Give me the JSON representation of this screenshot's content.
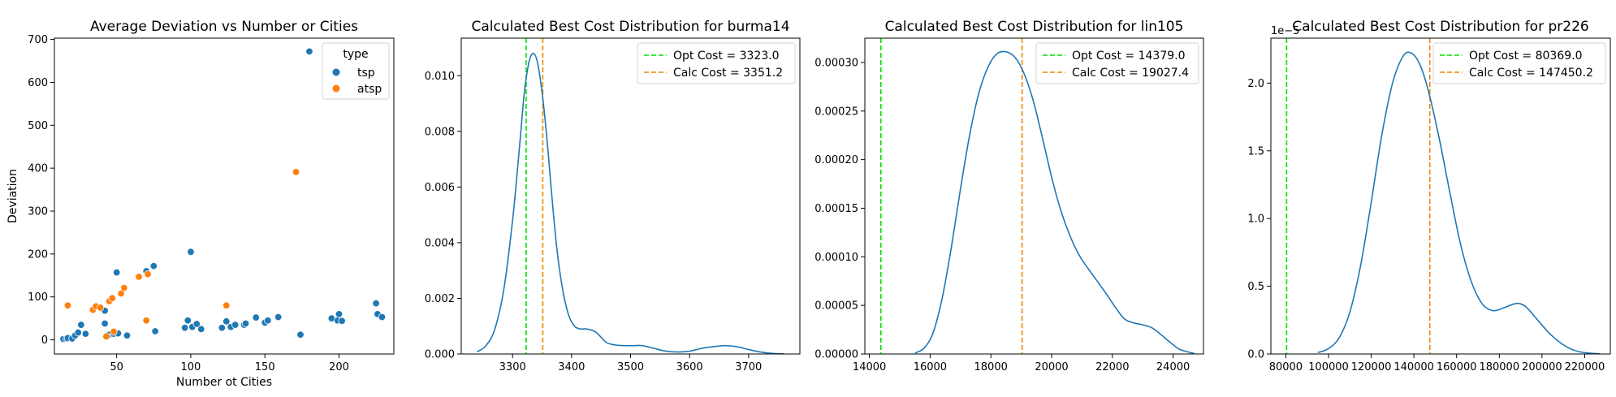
{
  "chart_data": [
    {
      "type": "scatter",
      "title": "Average Deviation vs Number or Cities",
      "xlabel": "Number ot Cities",
      "ylabel": "Deviation",
      "xlim": [
        8,
        237
      ],
      "ylim": [
        -33,
        703
      ],
      "xticks": [
        "50",
        "100",
        "150",
        "200"
      ],
      "xtick_values": [
        50,
        100,
        150,
        200
      ],
      "yticks": [
        "0",
        "100",
        "200",
        "300",
        "400",
        "500",
        "600",
        "700"
      ],
      "ytick_values": [
        0,
        100,
        200,
        300,
        400,
        500,
        600,
        700
      ],
      "legend": {
        "title": "type",
        "position": "top-right"
      },
      "series": [
        {
          "name": "tsp",
          "color": "#1f77b4",
          "points": [
            [
              14,
              2
            ],
            [
              16,
              3
            ],
            [
              17,
              4
            ],
            [
              20,
              3
            ],
            [
              22,
              10
            ],
            [
              24,
              17
            ],
            [
              26,
              35
            ],
            [
              29,
              14
            ],
            [
              42,
              68
            ],
            [
              42,
              38
            ],
            [
              45,
              12
            ],
            [
              48,
              14
            ],
            [
              50,
              157
            ],
            [
              51,
              15
            ],
            [
              57,
              10
            ],
            [
              70,
              160
            ],
            [
              75,
              172
            ],
            [
              76,
              20
            ],
            [
              96,
              28
            ],
            [
              98,
              45
            ],
            [
              100,
              205
            ],
            [
              101,
              30
            ],
            [
              104,
              37
            ],
            [
              107,
              25
            ],
            [
              121,
              28
            ],
            [
              124,
              43
            ],
            [
              127,
              30
            ],
            [
              130,
              35
            ],
            [
              136,
              35
            ],
            [
              137,
              38
            ],
            [
              144,
              52
            ],
            [
              150,
              40
            ],
            [
              152,
              45
            ],
            [
              159,
              53
            ],
            [
              174,
              12
            ],
            [
              180,
              672
            ],
            [
              195,
              50
            ],
            [
              199,
              45
            ],
            [
              200,
              60
            ],
            [
              202,
              44
            ],
            [
              225,
              85
            ],
            [
              226,
              60
            ],
            [
              229,
              53
            ]
          ]
        },
        {
          "name": "atsp",
          "color": "#ff7f0e",
          "points": [
            [
              17,
              80
            ],
            [
              34,
              70
            ],
            [
              36,
              78
            ],
            [
              39,
              75
            ],
            [
              43,
              8
            ],
            [
              45,
              90
            ],
            [
              47,
              97
            ],
            [
              48,
              19
            ],
            [
              53,
              108
            ],
            [
              55,
              121
            ],
            [
              65,
              147
            ],
            [
              70,
              45
            ],
            [
              71,
              153
            ],
            [
              124,
              80
            ],
            [
              171,
              391
            ]
          ]
        }
      ]
    },
    {
      "type": "line",
      "title": "Calculated Best Cost Distribution for burma14",
      "xlim": [
        3213,
        3787
      ],
      "ylim": [
        0,
        0.01135
      ],
      "xticks": [
        "3300",
        "3400",
        "3500",
        "3600",
        "3700"
      ],
      "xtick_values": [
        3300,
        3400,
        3500,
        3600,
        3700
      ],
      "yticks": [
        "0.000",
        "0.002",
        "0.004",
        "0.006",
        "0.008",
        "0.010"
      ],
      "ytick_values": [
        0,
        0.002,
        0.004,
        0.006,
        0.008,
        0.01
      ],
      "legend": {
        "position": "top-right"
      },
      "series": [
        {
          "name": "density",
          "color": "#1f77b4",
          "x": [
            3240,
            3255,
            3270,
            3285,
            3300,
            3312,
            3320,
            3328,
            3335,
            3342,
            3350,
            3358,
            3366,
            3375,
            3385,
            3395,
            3405,
            3415,
            3425,
            3440,
            3450,
            3460,
            3475,
            3490,
            3505,
            3520,
            3540,
            3560,
            3580,
            3600,
            3620,
            3640,
            3660,
            3680,
            3700,
            3720,
            3740,
            3760
          ],
          "y": [
            8e-05,
            0.0003,
            0.0009,
            0.0023,
            0.0048,
            0.0075,
            0.0094,
            0.0105,
            0.0108,
            0.0105,
            0.0094,
            0.0078,
            0.0058,
            0.0038,
            0.0023,
            0.0014,
            0.001,
            0.0009,
            0.0009,
            0.0008,
            0.0006,
            0.0004,
            0.00032,
            0.0003,
            0.0003,
            0.0003,
            0.0002,
            0.0001,
            7e-05,
            0.0001,
            0.0002,
            0.00026,
            0.0003,
            0.00026,
            0.00016,
            7e-05,
            2e-05,
            5e-06
          ]
        }
      ],
      "vlines": [
        {
          "label": "Opt Cost = 3323.0",
          "x": 3323.0,
          "color": "#00e000"
        },
        {
          "label": "Calc Cost = 3351.2",
          "x": 3351.2,
          "color": "#e88a00"
        }
      ]
    },
    {
      "type": "line",
      "title": "Calculated Best Cost Distribution for lin105",
      "xlim": [
        13850,
        25000
      ],
      "ylim": [
        0,
        0.000325
      ],
      "xticks": [
        "14000",
        "16000",
        "18000",
        "20000",
        "22000",
        "24000"
      ],
      "xtick_values": [
        14000,
        16000,
        18000,
        20000,
        22000,
        24000
      ],
      "yticks": [
        "0.00000",
        "0.00005",
        "0.00010",
        "0.00015",
        "0.00020",
        "0.00025",
        "0.00030"
      ],
      "ytick_values": [
        0,
        5e-05,
        0.0001,
        0.00015,
        0.0002,
        0.00025,
        0.0003
      ],
      "legend": {
        "position": "top-right"
      },
      "series": [
        {
          "name": "density",
          "color": "#1f77b4",
          "x": [
            15500,
            15800,
            16100,
            16400,
            16700,
            17000,
            17300,
            17600,
            17900,
            18200,
            18500,
            18800,
            19100,
            19400,
            19700,
            20000,
            20300,
            20600,
            20900,
            21200,
            21500,
            21800,
            22100,
            22400,
            22700,
            23000,
            23300,
            23600,
            23900,
            24200,
            24500,
            24700
          ],
          "y": [
            1e-06,
            6e-06,
            2.2e-05,
            5.8e-05,
            0.00011,
            0.00017,
            0.000225,
            0.000268,
            0.000295,
            0.000309,
            0.000311,
            0.000305,
            0.000288,
            0.00026,
            0.000222,
            0.000182,
            0.000148,
            0.000122,
            0.000102,
            8.8e-05,
            7.5e-05,
            6.2e-05,
            4.8e-05,
            3.6e-05,
            3.2e-05,
            3e-05,
            2.7e-05,
            2e-05,
            1.2e-05,
            5e-06,
            2e-06,
            5e-07
          ]
        }
      ],
      "vlines": [
        {
          "label": "Opt Cost = 14379.0",
          "x": 14379.0,
          "color": "#00e000"
        },
        {
          "label": "Calc Cost = 19027.4",
          "x": 19027.4,
          "color": "#e88a00"
        }
      ]
    },
    {
      "type": "line",
      "title": "Calculated Best Cost Distribution for pr226",
      "xlim": [
        73000,
        232000
      ],
      "ylim": [
        0,
        2.332e-05
      ],
      "offset_label": "1e−5",
      "xticks": [
        "80000",
        "100000",
        "120000",
        "140000",
        "160000",
        "180000",
        "200000",
        "220000"
      ],
      "xtick_values": [
        80000,
        100000,
        120000,
        140000,
        160000,
        180000,
        200000,
        220000
      ],
      "yticks": [
        "0.0",
        "0.5",
        "1.0",
        "1.5",
        "2.0"
      ],
      "ytick_values": [
        0,
        5e-06,
        1e-05,
        1.5e-05,
        2e-05
      ],
      "legend": {
        "position": "top-right"
      },
      "series": [
        {
          "name": "density",
          "color": "#1f77b4",
          "x": [
            95000,
            100000,
            105000,
            110000,
            115000,
            120000,
            125000,
            130000,
            135000,
            139000,
            143000,
            147000,
            152000,
            157000,
            162000,
            167000,
            172000,
            177000,
            182000,
            187000,
            190000,
            193000,
            198000,
            203000,
            208000,
            213000,
            218000,
            223000,
            227000
          ],
          "y": [
            1e-07,
            4e-07,
            1.2e-06,
            3.1e-06,
            6.5e-06,
            1.12e-05,
            1.62e-05,
            2e-05,
            2.2e-05,
            2.22e-05,
            2.13e-05,
            1.93e-05,
            1.58e-05,
            1.18e-05,
            8e-06,
            5.3e-06,
            3.7e-06,
            3.2e-06,
            3.4e-06,
            3.7e-06,
            3.7e-06,
            3.4e-06,
            2.5e-06,
            1.6e-06,
            9e-07,
            4e-07,
            1.5e-07,
            5e-08,
            1e-08
          ]
        }
      ],
      "vlines": [
        {
          "label": "Opt Cost = 80369.0",
          "x": 80369.0,
          "color": "#00e000"
        },
        {
          "label": "Calc Cost = 147450.2",
          "x": 147450.2,
          "color": "#e88a00"
        }
      ]
    }
  ]
}
